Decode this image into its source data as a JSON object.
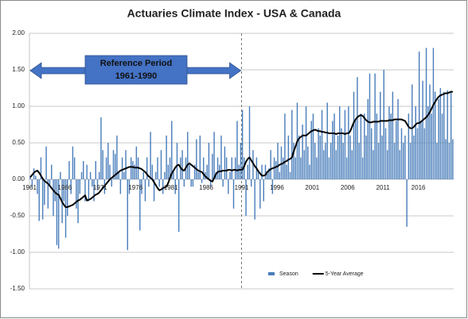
{
  "chart_data": {
    "type": "bar",
    "title": "Actuaries Climate Index  - USA & Canada",
    "annotations": [
      "Reference Period",
      "1961-1990"
    ],
    "categories": [
      "1961",
      null,
      null,
      null,
      null,
      null,
      null,
      null,
      null,
      null,
      null,
      null,
      null,
      null,
      null,
      null,
      null,
      null,
      null,
      null,
      "1966",
      null,
      null,
      null,
      null,
      null,
      null,
      null,
      null,
      null,
      null,
      null,
      null,
      null,
      null,
      null,
      null,
      null,
      null,
      null,
      "1971",
      null,
      null,
      null,
      null,
      null,
      null,
      null,
      null,
      null,
      null,
      null,
      null,
      null,
      null,
      null,
      null,
      null,
      null,
      null,
      "1976",
      null,
      null,
      null,
      null,
      null,
      null,
      null,
      null,
      null,
      null,
      null,
      null,
      null,
      null,
      null,
      null,
      null,
      null,
      null,
      "1981",
      null,
      null,
      null,
      null,
      null,
      null,
      null,
      null,
      null,
      null,
      null,
      null,
      null,
      null,
      null,
      null,
      null,
      null,
      null,
      "1986",
      null,
      null,
      null,
      null,
      null,
      null,
      null,
      null,
      null,
      null,
      null,
      null,
      null,
      null,
      null,
      null,
      null,
      null,
      null,
      "1991",
      null,
      null,
      null,
      null,
      null,
      null,
      null,
      null,
      null,
      null,
      null,
      null,
      null,
      null,
      null,
      null,
      null,
      null,
      null,
      "1996",
      null,
      null,
      null,
      null,
      null,
      null,
      null,
      null,
      null,
      null,
      null,
      null,
      null,
      null,
      null,
      null,
      null,
      null,
      null,
      "2001",
      null,
      null,
      null,
      null,
      null,
      null,
      null,
      null,
      null,
      null,
      null,
      null,
      null,
      null,
      null,
      null,
      null,
      null,
      null,
      "2006",
      null,
      null,
      null,
      null,
      null,
      null,
      null,
      null,
      null,
      null,
      null,
      null,
      null,
      null,
      null,
      null,
      null,
      null,
      null,
      "2011",
      null,
      null,
      null,
      null,
      null,
      null,
      null,
      null,
      null,
      null,
      null,
      null,
      null,
      null,
      null,
      null,
      null,
      null,
      null,
      "2016",
      null,
      null,
      null,
      null,
      null,
      null,
      null,
      null,
      null,
      null,
      null,
      null,
      null,
      null,
      null,
      null,
      null,
      null,
      null
    ],
    "series": [
      {
        "name": "Season",
        "type": "bar",
        "color": "#4a7ebb",
        "values": [
          0.05,
          -0.1,
          0.15,
          0.05,
          -0.2,
          -0.57,
          0.3,
          -0.55,
          -0.35,
          0.45,
          -0.4,
          -0.1,
          0.2,
          -0.5,
          -0.3,
          -0.9,
          -0.95,
          0.1,
          -0.6,
          -0.3,
          -0.8,
          -0.5,
          0.25,
          -0.2,
          0.45,
          0.3,
          -0.4,
          -0.6,
          -0.2,
          0.1,
          0.25,
          -0.3,
          0.2,
          -0.3,
          0.1,
          -0.1,
          -0.3,
          0.25,
          -0.15,
          0.1,
          0.85,
          0.4,
          -0.2,
          0.3,
          0.5,
          0.2,
          -0.1,
          0.4,
          0.35,
          0.6,
          0.1,
          -0.2,
          0.3,
          0.1,
          0.4,
          -0.97,
          -0.2,
          0.3,
          0.25,
          0.2,
          0.45,
          0.3,
          -0.7,
          -0.2,
          0.1,
          -0.3,
          0.3,
          -0.1,
          0.65,
          0.2,
          -0.3,
          0.1,
          0.3,
          -0.1,
          0.4,
          -0.2,
          0.1,
          0.6,
          0.2,
          0.3,
          0.8,
          0.1,
          -0.2,
          0.5,
          -0.72,
          0.3,
          0.4,
          -0.1,
          0.3,
          0.65,
          0.2,
          -0.1,
          -0.1,
          0.2,
          0.55,
          0.1,
          0.6,
          -0.05,
          0.3,
          0.1,
          0.2,
          0.5,
          -0.1,
          0.35,
          0.65,
          0.1,
          0.3,
          0.2,
          0.6,
          -0.1,
          0.45,
          0.3,
          -0.2,
          0.1,
          0.3,
          -0.4,
          0.3,
          0.8,
          0.2,
          0.5,
          0.95,
          0.3,
          -0.5,
          0.2,
          1.0,
          -0.1,
          0.4,
          -0.55,
          0.3,
          0.1,
          -0.4,
          0.2,
          -0.3,
          0.2,
          0.1,
          0.15,
          0.4,
          -0.2,
          0.3,
          0.25,
          0.5,
          0.1,
          0.45,
          0.3,
          0.9,
          0.2,
          0.6,
          0.1,
          0.95,
          0.5,
          0.3,
          1.05,
          0.6,
          0.3,
          0.75,
          0.4,
          1.0,
          0.45,
          0.2,
          0.8,
          0.9,
          0.5,
          0.3,
          0.7,
          0.6,
          0.95,
          0.4,
          0.5,
          1.05,
          0.3,
          0.5,
          0.8,
          0.9,
          0.4,
          0.6,
          1.0,
          0.7,
          0.5,
          0.95,
          0.3,
          1.0,
          0.6,
          0.4,
          1.2,
          0.8,
          1.4,
          0.5,
          0.9,
          0.3,
          0.9,
          0.6,
          1.1,
          1.45,
          0.7,
          0.4,
          1.45,
          0.9,
          0.5,
          1.2,
          0.6,
          1.5,
          0.7,
          0.4,
          1.0,
          0.9,
          1.2,
          0.5,
          0.8,
          1.1,
          0.4,
          0.7,
          0.5,
          0.6,
          -0.65,
          0.9,
          0.5,
          1.3,
          0.6,
          1.0,
          0.7,
          1.75,
          0.8,
          1.35,
          0.7,
          1.8,
          1.0,
          1.3,
          0.9,
          1.8,
          1.2,
          0.5,
          1.1,
          1.25,
          0.9,
          1.2,
          0.55,
          1.22,
          0.5,
          1.2,
          0.55
        ]
      },
      {
        "name": "5-Year Average",
        "type": "line",
        "color": "#000000",
        "values": [
          0.03,
          0.06,
          0.09,
          0.11,
          0.12,
          0.09,
          0.05,
          0.01,
          -0.02,
          -0.04,
          -0.06,
          -0.09,
          -0.12,
          -0.15,
          -0.18,
          -0.2,
          -0.21,
          -0.26,
          -0.31,
          -0.35,
          -0.38,
          -0.38,
          -0.37,
          -0.36,
          -0.35,
          -0.33,
          -0.31,
          -0.29,
          -0.28,
          -0.26,
          -0.24,
          -0.22,
          -0.29,
          -0.28,
          -0.27,
          -0.25,
          -0.23,
          -0.21,
          -0.2,
          -0.18,
          -0.15,
          -0.12,
          -0.09,
          -0.06,
          -0.03,
          0.0,
          0.02,
          0.04,
          0.06,
          0.08,
          0.1,
          0.12,
          0.13,
          0.14,
          0.15,
          0.16,
          0.17,
          0.17,
          0.17,
          0.16,
          0.16,
          0.16,
          0.15,
          0.14,
          0.12,
          0.1,
          0.07,
          0.04,
          0.02,
          0.0,
          -0.04,
          -0.08,
          -0.12,
          -0.15,
          -0.14,
          -0.12,
          -0.11,
          -0.1,
          -0.05,
          0.02,
          0.08,
          0.12,
          0.16,
          0.19,
          0.2,
          0.16,
          0.13,
          0.12,
          0.16,
          0.2,
          0.22,
          0.2,
          0.18,
          0.16,
          0.14,
          0.12,
          0.11,
          0.1,
          0.07,
          0.04,
          0.02,
          0.0,
          -0.02,
          -0.03,
          0.02,
          0.07,
          0.1,
          0.11,
          0.11,
          0.12,
          0.12,
          0.12,
          0.13,
          0.13,
          0.12,
          0.13,
          0.13,
          0.12,
          0.13,
          0.13,
          0.13,
          0.18,
          0.24,
          0.28,
          0.3,
          0.26,
          0.22,
          0.18,
          0.15,
          0.11,
          0.08,
          0.05,
          0.05,
          0.06,
          0.1,
          0.12,
          0.14,
          0.15,
          0.16,
          0.17,
          0.18,
          0.2,
          0.21,
          0.22,
          0.24,
          0.25,
          0.27,
          0.28,
          0.3,
          0.38,
          0.45,
          0.52,
          0.56,
          0.58,
          0.6,
          0.6,
          0.6,
          0.62,
          0.64,
          0.66,
          0.67,
          0.68,
          0.67,
          0.66,
          0.66,
          0.65,
          0.65,
          0.64,
          0.64,
          0.63,
          0.63,
          0.63,
          0.63,
          0.62,
          0.63,
          0.63,
          0.63,
          0.63,
          0.62,
          0.63,
          0.63,
          0.66,
          0.72,
          0.78,
          0.82,
          0.85,
          0.87,
          0.88,
          0.87,
          0.84,
          0.81,
          0.79,
          0.78,
          0.78,
          0.79,
          0.79,
          0.79,
          0.79,
          0.8,
          0.8,
          0.8,
          0.8,
          0.8,
          0.81,
          0.81,
          0.81,
          0.82,
          0.82,
          0.82,
          0.82,
          0.82,
          0.81,
          0.8,
          0.76,
          0.72,
          0.7,
          0.7,
          0.72,
          0.75,
          0.77,
          0.77,
          0.79,
          0.81,
          0.83,
          0.85,
          0.88,
          0.92,
          0.97,
          1.02,
          1.06,
          1.1,
          1.13,
          1.15,
          1.16,
          1.17,
          1.18,
          1.18,
          1.19,
          1.2,
          1.2
        ]
      }
    ],
    "ylim": [
      -1.5,
      2.0
    ],
    "yticks": [
      {
        "value": -1.5,
        "label": "-1.50"
      },
      {
        "value": -1.0,
        "label": "-1.00"
      },
      {
        "value": -0.5,
        "label": "-0.50"
      },
      {
        "value": 0,
        "label": "0.00"
      },
      {
        "value": 0.5,
        "label": "0.50"
      },
      {
        "value": 1.0,
        "label": "1.00"
      },
      {
        "value": 1.5,
        "label": "1.50"
      },
      {
        "value": 2.0,
        "label": "2.00"
      }
    ],
    "grid": true,
    "legend": "bottom-right"
  }
}
